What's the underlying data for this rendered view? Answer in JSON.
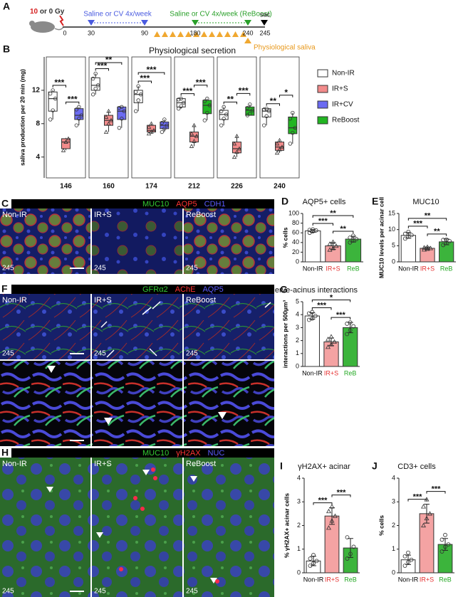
{
  "timeline": {
    "panel": "A",
    "dose": "10",
    "dose_rest": " or 0 Gy",
    "days": [
      "0",
      "30",
      "90",
      "180",
      "240",
      "245"
    ],
    "phase1": "Saline or CV 4x/week",
    "phase2": "Saline or CV 4x/week (ReBoost)",
    "sac": "sac",
    "saliva": "Physiological saliva"
  },
  "micrographs": [
    {
      "panel": "C",
      "stains": [
        {
          "text": "MUC10",
          "color": "#33cc33"
        },
        {
          "text": "AQP5",
          "color": "#ff3333"
        },
        {
          "text": "CDH1",
          "color": "#5b5bff"
        }
      ],
      "tiles": [
        "Non-IR",
        "IR+S",
        "ReBoost"
      ],
      "day": "245"
    },
    {
      "panel": "F",
      "stains": [
        {
          "text": "GFRα2",
          "color": "#33cc33"
        },
        {
          "text": "AChE",
          "color": "#ff3333"
        },
        {
          "text": "AQP5",
          "color": "#5b5bff"
        }
      ],
      "tiles": [
        "Non-IR",
        "IR+S",
        "ReBoost"
      ],
      "day": "245"
    },
    {
      "panel": "H",
      "stains": [
        {
          "text": "MUC10",
          "color": "#33cc33"
        },
        {
          "text": "γH2AX",
          "color": "#ff3333"
        },
        {
          "text": "NUC",
          "color": "#5b5bff"
        }
      ],
      "tiles": [
        "Non-IR",
        "IR+S",
        "ReBoost"
      ],
      "day": "245"
    }
  ],
  "chart_data": [
    {
      "type": "box",
      "panel": "B",
      "title": "Physiological secretion",
      "y_label": "saliva production per 20 min (mg)",
      "categories": [
        "146",
        "160",
        "174",
        "212",
        "226",
        "240"
      ],
      "ylim": [
        1.5,
        16
      ],
      "yticks": [
        4,
        8,
        12
      ],
      "series": [
        {
          "name": "Non-IR",
          "color": "#ffffff",
          "min": [
            8.5,
            11.5,
            9.5,
            9.8,
            7.8,
            7.8
          ],
          "q1": [
            9.5,
            12,
            10.5,
            10,
            8.5,
            8.8
          ],
          "median": [
            11,
            12.6,
            11.5,
            10.5,
            9.1,
            9.5
          ],
          "q3": [
            11.8,
            13.5,
            12,
            11,
            9.6,
            9.8
          ],
          "max": [
            12,
            14,
            12.5,
            11,
            10,
            9.8
          ],
          "points": [
            [
              8.5,
              9.6,
              11,
              11.6,
              12
            ],
            [
              11.5,
              12.2,
              12.6,
              13.4,
              14
            ],
            [
              9.5,
              10.8,
              11.5,
              11.8,
              12.5
            ],
            [
              9.8,
              10.1,
              10.5,
              10.9,
              11
            ],
            [
              7.8,
              8.6,
              9.1,
              9.5,
              10
            ],
            [
              7.8,
              8.9,
              9.5,
              9.7,
              9.8
            ]
          ]
        },
        {
          "name": "IR+S",
          "color": "#f28b8b",
          "min": [
            4.8,
            7,
            6.8,
            5.3,
            4,
            4.5
          ],
          "q1": [
            5,
            7.8,
            7,
            5.8,
            4.5,
            4.8
          ],
          "median": [
            5.8,
            8.4,
            7.2,
            6.5,
            5,
            5.2
          ],
          "q3": [
            6.2,
            9,
            7.8,
            7,
            5.8,
            5.8
          ],
          "max": [
            6.3,
            9.5,
            8,
            7.8,
            6.5,
            6
          ],
          "points": [
            [
              4.8,
              5.8,
              6.2
            ],
            [
              7,
              8,
              8.4,
              8.8,
              9.5
            ],
            [
              6.8,
              7,
              7.2,
              7.6,
              8
            ],
            [
              5.3,
              5.9,
              6.5,
              6.8,
              7.8
            ],
            [
              4,
              4.6,
              5,
              5.6,
              6.5
            ],
            [
              4.5,
              4.9,
              5.2,
              5.6,
              6
            ]
          ]
        },
        {
          "name": "IR+CV",
          "color": "#6b6bf2",
          "min": [
            7.8,
            7.5,
            7,
            null,
            null,
            null
          ],
          "q1": [
            8.5,
            8.5,
            7.4,
            null,
            null,
            null
          ],
          "median": [
            9,
            9.5,
            7.8,
            null,
            null,
            null
          ],
          "q3": [
            9.8,
            10,
            8.2,
            null,
            null,
            null
          ],
          "max": [
            10,
            10,
            8.5,
            null,
            null,
            null
          ],
          "points": [
            [
              7.8,
              8.6,
              9,
              9.7,
              10
            ],
            [
              7.5,
              8.6,
              9.5,
              9.9,
              10
            ],
            [
              7,
              7.4,
              7.8,
              8.1,
              8.5
            ],
            null,
            null,
            null
          ]
        },
        {
          "name": "ReBoost",
          "color": "#22b522",
          "min": [
            null,
            null,
            null,
            8.4,
            9,
            5.6
          ],
          "q1": [
            null,
            null,
            null,
            9.2,
            9,
            6.8
          ],
          "median": [
            null,
            null,
            null,
            10.2,
            9.6,
            7.5
          ],
          "q3": [
            null,
            null,
            null,
            10.8,
            10,
            8.8
          ],
          "max": [
            null,
            null,
            null,
            11,
            10.3,
            9.3
          ],
          "points": [
            null,
            null,
            null,
            [
              8.4,
              9.3,
              10.2,
              10.7,
              11
            ],
            [
              9,
              9.2,
              9.6,
              9.9,
              10.3
            ],
            [
              5.6,
              6.9,
              7.5,
              8.6,
              9.3
            ]
          ]
        }
      ],
      "significance": [
        [
          {
            "between": [
              "IR+S",
              "IR+CV"
            ],
            "label": "***"
          },
          {
            "between": [
              "Non-IR",
              "IR+S"
            ],
            "label": "***"
          }
        ],
        [
          {
            "between": [
              "Non-IR",
              "IR+S"
            ],
            "label": "***"
          },
          {
            "between": [
              "Non-IR",
              "IR+CV"
            ],
            "label": "**"
          }
        ],
        [
          {
            "between": [
              "Non-IR",
              "IR+S"
            ],
            "label": "***"
          },
          {
            "between": [
              "Non-IR",
              "IR+CV"
            ],
            "label": "***"
          }
        ],
        [
          {
            "between": [
              "Non-IR",
              "IR+S"
            ],
            "label": "***"
          },
          {
            "between": [
              "IR+S",
              "ReBoost"
            ],
            "label": "***"
          }
        ],
        [
          {
            "between": [
              "Non-IR",
              "IR+S"
            ],
            "label": "**"
          },
          {
            "between": [
              "IR+S",
              "ReBoost"
            ],
            "label": "***"
          }
        ],
        [
          {
            "between": [
              "Non-IR",
              "IR+S"
            ],
            "label": "**"
          },
          {
            "between": [
              "IR+S",
              "ReBoost"
            ],
            "label": "*"
          }
        ]
      ]
    },
    {
      "type": "bar",
      "panel": "D",
      "title": "AQP5+ cells",
      "y_label": "% cells",
      "categories": [
        "Non-IR",
        "IR+S",
        "ReB"
      ],
      "colors": [
        "#ffffff",
        "#f4a3a3",
        "#3cb43c"
      ],
      "label_colors": [
        "#000000",
        "#e53030",
        "#22a822"
      ],
      "values": [
        64,
        33,
        47
      ],
      "errors": [
        3,
        7,
        6
      ],
      "points": [
        [
          60,
          63,
          65,
          66,
          67
        ],
        [
          25,
          28,
          33,
          37,
          41
        ],
        [
          40,
          44,
          47,
          50,
          54
        ]
      ],
      "ylim": [
        0,
        100
      ],
      "yticks": [
        0,
        20,
        40,
        60,
        80,
        100
      ],
      "significance": [
        {
          "between": [
            "IR+S",
            "ReB"
          ],
          "label": "**"
        },
        {
          "between": [
            "Non-IR",
            "IR+S"
          ],
          "label": "***"
        },
        {
          "between": [
            "Non-IR",
            "ReB"
          ],
          "label": "**"
        }
      ]
    },
    {
      "type": "bar",
      "panel": "E",
      "title": "MUC10",
      "y_label": "MUC10 levels per acinar cell",
      "categories": [
        "Non-IR",
        "IR+S",
        "ReB"
      ],
      "colors": [
        "#ffffff",
        "#f4a3a3",
        "#3cb43c"
      ],
      "label_colors": [
        "#000000",
        "#e53030",
        "#22a822"
      ],
      "values": [
        8.2,
        4.2,
        6.2
      ],
      "errors": [
        0.9,
        0.4,
        0.9
      ],
      "points": [
        [
          7.2,
          7.8,
          8.3,
          8.7,
          9.3
        ],
        [
          3.8,
          4,
          4.2,
          4.4,
          4.6
        ],
        [
          5.2,
          5.8,
          6.4,
          6.8,
          6.9
        ]
      ],
      "ylim": [
        0,
        15
      ],
      "yticks": [
        0,
        5,
        10,
        15
      ],
      "significance": [
        {
          "between": [
            "IR+S",
            "ReB"
          ],
          "label": "**"
        },
        {
          "between": [
            "Non-IR",
            "IR+S"
          ],
          "label": "***"
        },
        {
          "between": [
            "Non-IR",
            "ReB"
          ],
          "label": "**"
        }
      ]
    },
    {
      "type": "bar",
      "panel": "G",
      "title": "Nerve-acinus interactions",
      "y_label": "interactions per 500µm³",
      "categories": [
        "Non-IR",
        "IR+S",
        "ReB"
      ],
      "colors": [
        "#ffffff",
        "#f4a3a3",
        "#3cb43c"
      ],
      "label_colors": [
        "#000000",
        "#e53030",
        "#22a822"
      ],
      "values": [
        3.9,
        1.9,
        3.0
      ],
      "errors": [
        0.25,
        0.3,
        0.4
      ],
      "points": [
        [
          3.6,
          3.7,
          3.9,
          4.1,
          4.2
        ],
        [
          1.5,
          1.7,
          1.9,
          2.1,
          2.3
        ],
        [
          2.5,
          2.8,
          3.1,
          3.3,
          3.4
        ]
      ],
      "ylim": [
        0,
        5
      ],
      "yticks": [
        0,
        1,
        2,
        3,
        4,
        5
      ],
      "significance": [
        {
          "between": [
            "IR+S",
            "ReB"
          ],
          "label": "***"
        },
        {
          "between": [
            "Non-IR",
            "IR+S"
          ],
          "label": "***"
        },
        {
          "between": [
            "Non-IR",
            "ReB"
          ],
          "label": "*"
        }
      ]
    },
    {
      "type": "bar",
      "panel": "I",
      "title": "γH2AX+ acinar",
      "y_label": "% γH2AX+ acinar cells",
      "categories": [
        "Non-IR",
        "IR+S",
        "ReB"
      ],
      "colors": [
        "#ffffff",
        "#f4a3a3",
        "#3cb43c"
      ],
      "label_colors": [
        "#000000",
        "#e53030",
        "#22a822"
      ],
      "values": [
        0.5,
        2.4,
        1.05
      ],
      "errors": [
        0.2,
        0.35,
        0.4
      ],
      "points": [
        [
          0.3,
          0.4,
          0.5,
          0.6,
          0.75
        ],
        [
          1.9,
          2.2,
          2.4,
          2.6,
          2.8
        ],
        [
          0.6,
          0.8,
          1.1,
          1.5
        ]
      ],
      "ylim": [
        0,
        4
      ],
      "yticks": [
        0,
        1,
        2,
        3,
        4
      ],
      "significance": [
        {
          "between": [
            "Non-IR",
            "IR+S"
          ],
          "label": "***"
        },
        {
          "between": [
            "IR+S",
            "ReB"
          ],
          "label": "***"
        }
      ]
    },
    {
      "type": "bar",
      "panel": "J",
      "title": "CD3+ cells",
      "y_label": "% cells",
      "categories": [
        "Non-IR",
        "IR+S",
        "ReB"
      ],
      "colors": [
        "#ffffff",
        "#f4a3a3",
        "#3cb43c"
      ],
      "label_colors": [
        "#000000",
        "#e53030",
        "#22a822"
      ],
      "values": [
        0.55,
        2.5,
        1.2
      ],
      "errors": [
        0.2,
        0.4,
        0.25
      ],
      "points": [
        [
          0.3,
          0.45,
          0.55,
          0.7,
          0.85
        ],
        [
          2,
          2.3,
          2.5,
          2.8,
          3.1
        ],
        [
          0.9,
          1.1,
          1.2,
          1.4,
          1.6
        ]
      ],
      "ylim": [
        0,
        4
      ],
      "yticks": [
        0,
        1,
        2,
        3,
        4
      ],
      "significance": [
        {
          "between": [
            "Non-IR",
            "IR+S"
          ],
          "label": "***"
        },
        {
          "between": [
            "IR+S",
            "ReB"
          ],
          "label": "***"
        }
      ]
    }
  ]
}
